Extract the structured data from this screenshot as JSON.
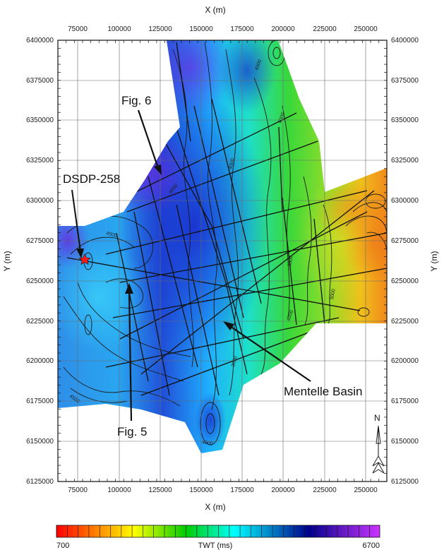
{
  "map": {
    "x_axis_label": "X (m)",
    "y_axis_label": "Y (m)",
    "x_ticks": [
      "75000",
      "100000",
      "125000",
      "150000",
      "175000",
      "200000",
      "225000",
      "250000"
    ],
    "y_ticks": [
      "6400000",
      "6375000",
      "6350000",
      "6325000",
      "6300000",
      "6275000",
      "6250000",
      "6225000",
      "6200000",
      "6175000",
      "6150000",
      "6125000"
    ],
    "annotations": {
      "fig6": "Fig. 6",
      "dsdp": "DSDP-258",
      "fig5": "Fig. 5",
      "basin": "Mentelle Basin"
    },
    "north_label": "N",
    "contour_labels": [
      "4000",
      "4000",
      "4000",
      "4000",
      "3000",
      "3000",
      "3000",
      "4000",
      "4500",
      "4500",
      "4000"
    ]
  },
  "colorbar": {
    "min_label": "700",
    "max_label": "6700",
    "title": "TWT (ms)",
    "colors": [
      "#ff0000",
      "#ff7f00",
      "#ffff00",
      "#00cc00",
      "#00ffff",
      "#00008b",
      "#cc33ff"
    ]
  }
}
